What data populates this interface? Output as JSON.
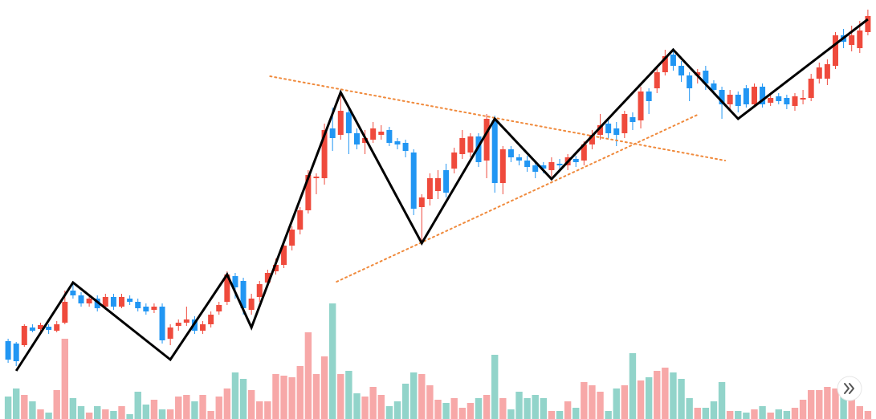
{
  "chart_data": {
    "type": "candlestick",
    "xlim": [
      -1,
      107
    ],
    "ylim": [
      0,
      522
    ],
    "y2lim": [
      0,
      522
    ],
    "up_color": "#ef4a3c",
    "down_color": "#2196f3",
    "volume_up_color": "#f7a8a8",
    "volume_down_color": "#92d4ca",
    "open": [
      97,
      94,
      92,
      114,
      112,
      115,
      110,
      120,
      160,
      154,
      144,
      150,
      140,
      152,
      140,
      150,
      146,
      140,
      136,
      140,
      100,
      116,
      120,
      124,
      110,
      118,
      134,
      146,
      178,
      172,
      136,
      152,
      170,
      184,
      192,
      216,
      236,
      260,
      300,
      300,
      362,
      354,
      382,
      356,
      344,
      348,
      354,
      360,
      346,
      344,
      332,
      264,
      274,
      284,
      310,
      312,
      330,
      332,
      352,
      322,
      372,
      294,
      336,
      326,
      322,
      316,
      316,
      310,
      318,
      316,
      324,
      322,
      342,
      354,
      368,
      362,
      356,
      376,
      372,
      408,
      412,
      432,
      454,
      440,
      428,
      428,
      434,
      418,
      410,
      392,
      404,
      412,
      392,
      414,
      394,
      402,
      400,
      390,
      398,
      400,
      424,
      424,
      440,
      478,
      466,
      462,
      482
    ],
    "high": [
      100,
      96,
      118,
      118,
      120,
      118,
      122,
      160,
      168,
      158,
      154,
      154,
      156,
      156,
      156,
      154,
      150,
      144,
      144,
      144,
      118,
      124,
      140,
      128,
      122,
      134,
      146,
      184,
      182,
      176,
      156,
      172,
      186,
      200,
      222,
      240,
      264,
      310,
      306,
      368,
      388,
      408,
      390,
      362,
      360,
      370,
      366,
      364,
      350,
      348,
      336,
      280,
      306,
      310,
      318,
      338,
      360,
      356,
      356,
      380,
      378,
      340,
      340,
      330,
      328,
      322,
      320,
      326,
      324,
      330,
      328,
      346,
      360,
      380,
      374,
      370,
      384,
      382,
      414,
      412,
      438,
      460,
      462,
      446,
      432,
      436,
      440,
      422,
      414,
      410,
      408,
      416,
      418,
      418,
      404,
      406,
      404,
      406,
      410,
      430,
      444,
      448,
      482,
      486,
      490,
      496,
      510
    ],
    "low": [
      70,
      66,
      90,
      108,
      108,
      106,
      108,
      118,
      150,
      140,
      140,
      134,
      136,
      136,
      138,
      142,
      134,
      130,
      132,
      94,
      92,
      110,
      116,
      106,
      106,
      114,
      130,
      142,
      150,
      130,
      130,
      146,
      164,
      180,
      188,
      210,
      230,
      256,
      280,
      292,
      334,
      348,
      330,
      336,
      330,
      344,
      348,
      340,
      336,
      326,
      254,
      220,
      266,
      274,
      276,
      306,
      324,
      326,
      314,
      300,
      282,
      280,
      320,
      316,
      308,
      300,
      306,
      302,
      310,
      310,
      314,
      316,
      336,
      348,
      350,
      340,
      350,
      360,
      362,
      380,
      406,
      428,
      434,
      420,
      396,
      418,
      410,
      404,
      374,
      384,
      382,
      388,
      388,
      388,
      390,
      392,
      386,
      384,
      392,
      396,
      418,
      416,
      436,
      462,
      458,
      456,
      478
    ],
    "close": [
      74,
      72,
      116,
      110,
      117,
      111,
      118,
      146,
      154,
      144,
      150,
      138,
      152,
      140,
      152,
      146,
      138,
      134,
      140,
      98,
      114,
      120,
      124,
      110,
      118,
      130,
      142,
      180,
      164,
      138,
      150,
      168,
      182,
      192,
      216,
      236,
      260,
      304,
      302,
      360,
      350,
      384,
      356,
      342,
      350,
      362,
      358,
      344,
      342,
      334,
      262,
      276,
      300,
      300,
      282,
      332,
      350,
      352,
      320,
      374,
      294,
      336,
      326,
      322,
      314,
      308,
      312,
      320,
      316,
      326,
      320,
      342,
      354,
      366,
      356,
      354,
      380,
      370,
      408,
      396,
      432,
      452,
      440,
      428,
      412,
      432,
      418,
      410,
      392,
      404,
      390,
      392,
      414,
      392,
      400,
      396,
      392,
      402,
      400,
      424,
      438,
      442,
      478,
      470,
      478,
      484,
      502
    ],
    "volume": [
      28,
      38,
      30,
      22,
      12,
      8,
      36,
      100,
      26,
      16,
      8,
      16,
      12,
      10,
      16,
      6,
      34,
      18,
      24,
      12,
      12,
      28,
      30,
      22,
      30,
      10,
      28,
      38,
      58,
      50,
      36,
      22,
      22,
      56,
      54,
      52,
      66,
      108,
      56,
      78,
      144,
      56,
      60,
      32,
      28,
      40,
      30,
      16,
      22,
      44,
      58,
      56,
      42,
      24,
      20,
      26,
      14,
      20,
      26,
      30,
      80,
      26,
      12,
      34,
      26,
      30,
      26,
      10,
      10,
      22,
      14,
      46,
      42,
      34,
      10,
      38,
      42,
      82,
      48,
      52,
      60,
      64,
      58,
      50,
      26,
      14,
      14,
      22,
      46,
      10,
      10,
      8,
      12,
      16,
      8,
      12,
      10,
      14,
      24,
      36,
      36,
      40,
      38,
      28,
      30,
      16,
      10
    ],
    "zigzag": {
      "color": "#000000",
      "x": [
        1,
        8,
        20,
        27,
        30,
        41,
        51,
        60,
        67,
        82,
        90,
        106
      ],
      "values": [
        60,
        170,
        74,
        180,
        114,
        407,
        219,
        374,
        299,
        460,
        374,
        498
      ]
    },
    "trend_lines": [
      {
        "color": "#f08a3c",
        "x": [
          32.3,
          88.4
        ],
        "values": [
          427,
          322
        ]
      },
      {
        "color": "#f08a3c",
        "x": [
          40.5,
          85
        ],
        "values": [
          171,
          379
        ]
      }
    ]
  }
}
